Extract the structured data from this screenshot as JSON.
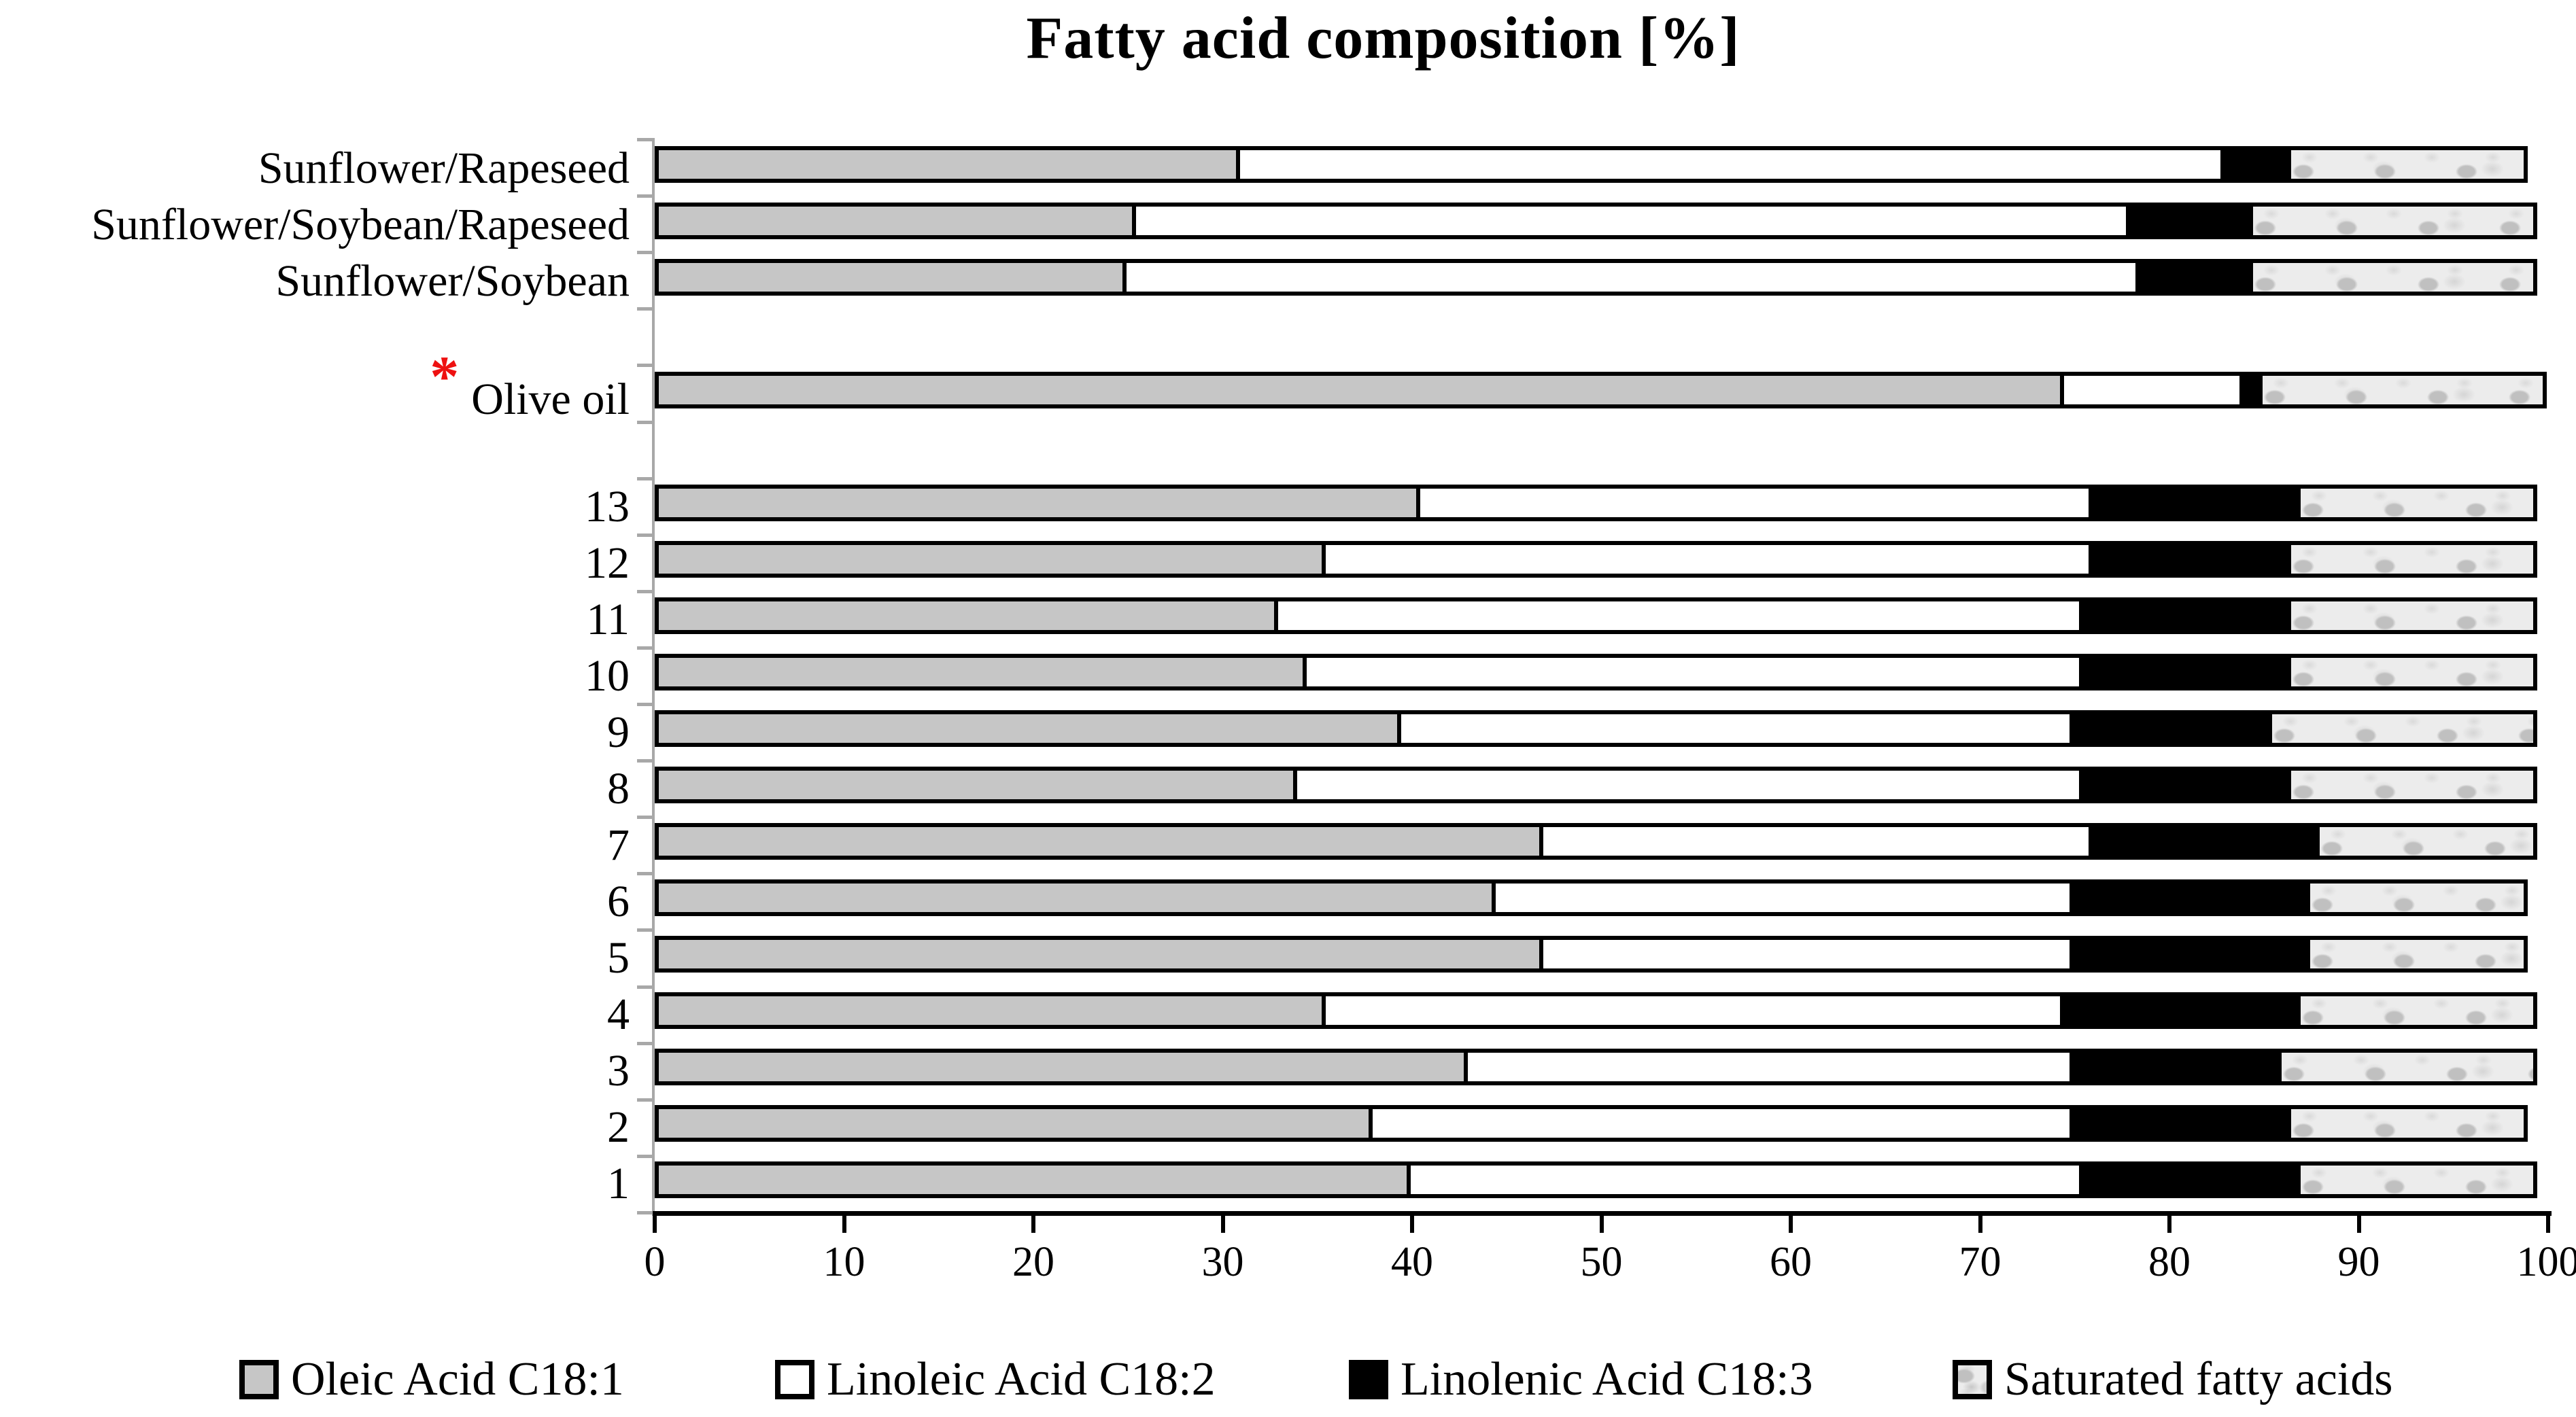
{
  "chart_data": {
    "type": "bar",
    "orientation": "horizontal",
    "stacked": true,
    "title": "Fatty acid composition [%]",
    "xlabel": "",
    "ylabel": "",
    "x_axis": {
      "min": 0,
      "max": 100,
      "tick_step": 10,
      "tick_labels": [
        "0",
        "10",
        "20",
        "30",
        "40",
        "50",
        "60",
        "70",
        "80",
        "90",
        "100"
      ]
    },
    "grid": false,
    "legend_position": "bottom",
    "series_keys": [
      "oleic",
      "linoleic",
      "linolenic",
      "saturated"
    ],
    "legend": [
      {
        "key": "oleic",
        "label": "Oleic Acid C18:1",
        "swatch": "gray"
      },
      {
        "key": "linoleic",
        "label": "Linoleic Acid C18:2",
        "swatch": "white"
      },
      {
        "key": "linolenic",
        "label": "Linolenic Acid C18:3",
        "swatch": "black"
      },
      {
        "key": "saturated",
        "label": "Saturated fatty acids",
        "swatch": "pattern"
      }
    ],
    "annotation": {
      "symbol": "*",
      "color": "#ee1111",
      "applies_to": "Olive oil"
    },
    "rows": [
      {
        "label": "Sunflower/Rapeseed",
        "slot": 0,
        "asterisk": false,
        "values": [
          30.5,
          52.0,
          3.5,
          12.5
        ]
      },
      {
        "label": "Sunflower/Soybean/Rapeseed",
        "slot": 1,
        "asterisk": false,
        "values": [
          25.0,
          52.5,
          6.5,
          15.0
        ]
      },
      {
        "label": "Sunflower/Soybean",
        "slot": 2,
        "asterisk": false,
        "values": [
          24.5,
          53.5,
          6.0,
          15.0
        ]
      },
      {
        "label": "Olive oil",
        "slot": 4,
        "asterisk": true,
        "values": [
          74.0,
          9.5,
          1.0,
          15.0
        ]
      },
      {
        "label": "13",
        "slot": 6,
        "asterisk": false,
        "values": [
          40.0,
          35.5,
          11.0,
          12.5
        ]
      },
      {
        "label": "12",
        "slot": 7,
        "asterisk": false,
        "values": [
          35.0,
          40.5,
          10.5,
          13.0
        ]
      },
      {
        "label": "11",
        "slot": 8,
        "asterisk": false,
        "values": [
          32.5,
          42.5,
          11.0,
          13.0
        ]
      },
      {
        "label": "10",
        "slot": 9,
        "asterisk": false,
        "values": [
          34.0,
          41.0,
          11.0,
          13.0
        ]
      },
      {
        "label": "9",
        "slot": 10,
        "asterisk": false,
        "values": [
          39.0,
          35.5,
          10.5,
          14.0
        ]
      },
      {
        "label": "8",
        "slot": 11,
        "asterisk": false,
        "values": [
          33.5,
          41.5,
          11.0,
          13.0
        ]
      },
      {
        "label": "7",
        "slot": 12,
        "asterisk": false,
        "values": [
          46.5,
          29.0,
          12.0,
          11.5
        ]
      },
      {
        "label": "6",
        "slot": 13,
        "asterisk": false,
        "values": [
          44.0,
          30.5,
          12.5,
          11.5
        ]
      },
      {
        "label": "5",
        "slot": 14,
        "asterisk": false,
        "values": [
          46.5,
          28.0,
          12.5,
          11.5
        ]
      },
      {
        "label": "4",
        "slot": 15,
        "asterisk": false,
        "values": [
          35.0,
          39.0,
          12.5,
          12.5
        ]
      },
      {
        "label": "3",
        "slot": 16,
        "asterisk": false,
        "values": [
          42.5,
          32.0,
          11.0,
          13.5
        ]
      },
      {
        "label": "2",
        "slot": 17,
        "asterisk": false,
        "values": [
          37.5,
          37.0,
          11.5,
          12.5
        ]
      },
      {
        "label": "1",
        "slot": 18,
        "asterisk": false,
        "values": [
          39.5,
          35.5,
          11.5,
          12.5
        ]
      }
    ],
    "colors": {
      "oleic": "#c6c6c6",
      "linoleic": "#ffffff",
      "linolenic": "#000000",
      "saturated_base": "#ececec",
      "bar_border": "#000000",
      "y_axis": "#a8a8a8",
      "x_axis": "#000000",
      "annotation": "#ee1111"
    }
  }
}
